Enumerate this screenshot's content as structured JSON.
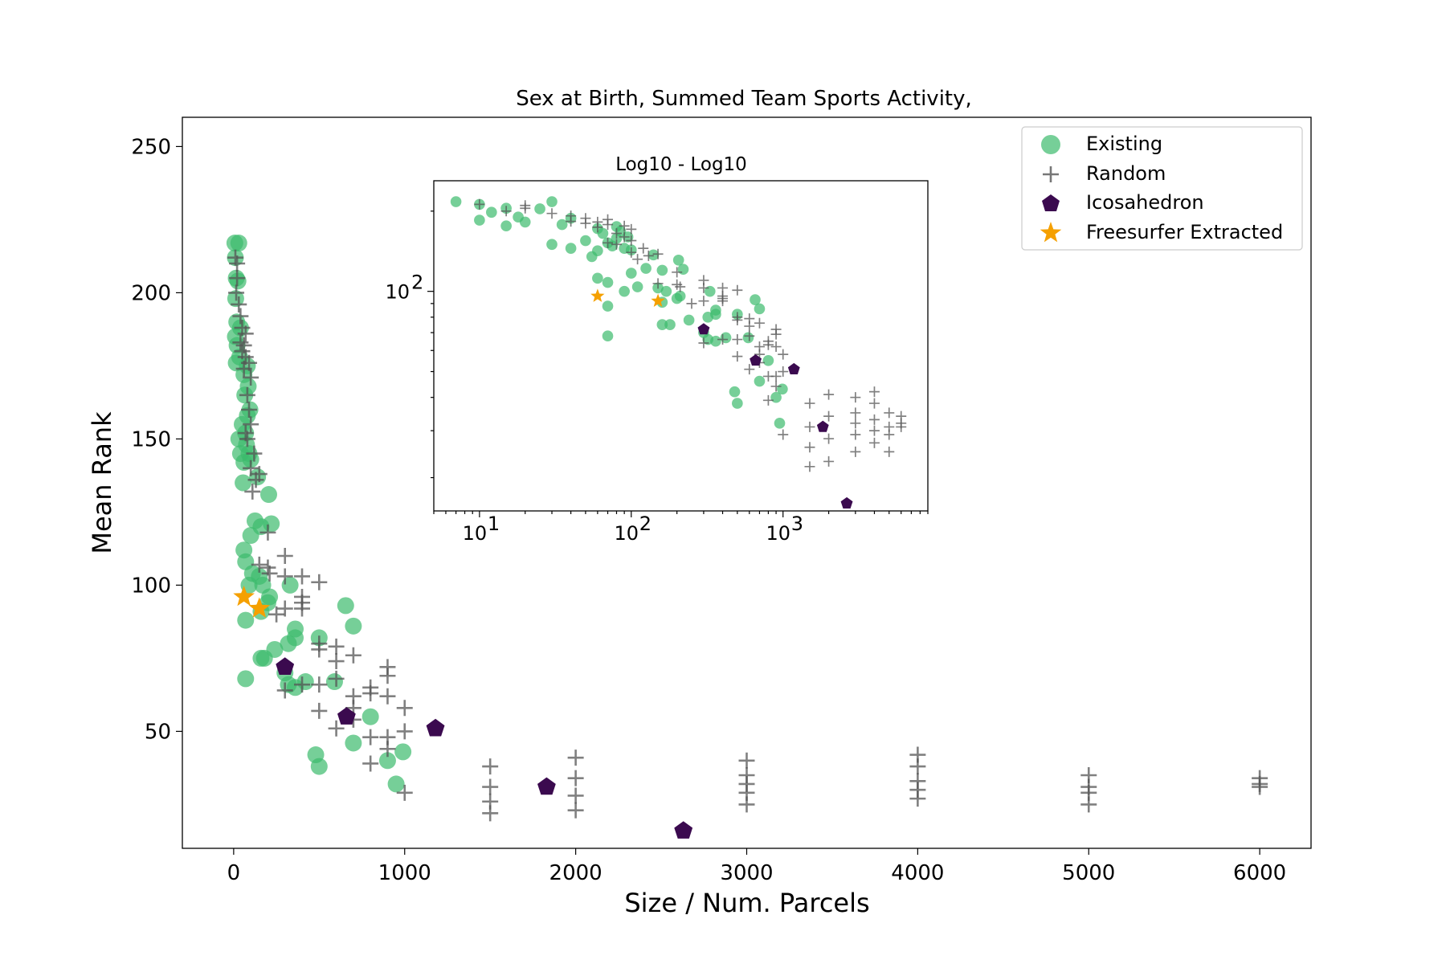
{
  "chart_data": {
    "type": "scatter",
    "title": "Sex at Birth, Summed Team Sports Activity,",
    "xlabel": "Size / Num. Parcels",
    "ylabel": "Mean Rank",
    "xlim": [
      -300,
      6300
    ],
    "ylim": [
      10,
      260
    ],
    "xticks": [
      0,
      1000,
      2000,
      3000,
      4000,
      5000,
      6000
    ],
    "yticks": [
      50,
      100,
      150,
      200,
      250
    ],
    "grid": false,
    "legend_position": "upper right",
    "colors": {
      "existing": "#3cbb6c",
      "random": "#555555",
      "icosahedron": "#3b0a4f",
      "freesurfer": "#f5a000"
    },
    "series": [
      {
        "name": "Existing",
        "marker": "circle",
        "points": [
          [
            7,
            217
          ],
          [
            30,
            217
          ],
          [
            10,
            212
          ],
          [
            15,
            205
          ],
          [
            25,
            204
          ],
          [
            12,
            198
          ],
          [
            18,
            190
          ],
          [
            40,
            188
          ],
          [
            10,
            185
          ],
          [
            20,
            182
          ],
          [
            35,
            178
          ],
          [
            80,
            175
          ],
          [
            15,
            176
          ],
          [
            60,
            172
          ],
          [
            85,
            168
          ],
          [
            65,
            165
          ],
          [
            95,
            160
          ],
          [
            80,
            158
          ],
          [
            50,
            155
          ],
          [
            70,
            152
          ],
          [
            30,
            150
          ],
          [
            75,
            148
          ],
          [
            40,
            145
          ],
          [
            90,
            145
          ],
          [
            60,
            142
          ],
          [
            100,
            143
          ],
          [
            55,
            135
          ],
          [
            140,
            137
          ],
          [
            205,
            131
          ],
          [
            125,
            122
          ],
          [
            160,
            120
          ],
          [
            220,
            121
          ],
          [
            100,
            117
          ],
          [
            60,
            112
          ],
          [
            70,
            108
          ],
          [
            110,
            104
          ],
          [
            150,
            103
          ],
          [
            90,
            100
          ],
          [
            170,
            100
          ],
          [
            330,
            100
          ],
          [
            210,
            96
          ],
          [
            200,
            94
          ],
          [
            160,
            91
          ],
          [
            655,
            93
          ],
          [
            70,
            88
          ],
          [
            700,
            86
          ],
          [
            360,
            85
          ],
          [
            360,
            82
          ],
          [
            500,
            82
          ],
          [
            320,
            80
          ],
          [
            240,
            78
          ],
          [
            160,
            75
          ],
          [
            180,
            75
          ],
          [
            300,
            70
          ],
          [
            70,
            68
          ],
          [
            420,
            67
          ],
          [
            320,
            66
          ],
          [
            360,
            65
          ],
          [
            590,
            67
          ],
          [
            800,
            55
          ],
          [
            700,
            46
          ],
          [
            480,
            42
          ],
          [
            500,
            38
          ],
          [
            900,
            40
          ],
          [
            990,
            43
          ],
          [
            950,
            32
          ]
        ]
      },
      {
        "name": "Random",
        "marker": "plus",
        "points": [
          [
            10,
            212
          ],
          [
            20,
            210
          ],
          [
            20,
            205
          ],
          [
            15,
            200
          ],
          [
            30,
            196
          ],
          [
            40,
            192
          ],
          [
            50,
            188
          ],
          [
            70,
            186
          ],
          [
            40,
            183
          ],
          [
            60,
            182
          ],
          [
            50,
            180
          ],
          [
            70,
            178
          ],
          [
            90,
            176
          ],
          [
            60,
            174
          ],
          [
            100,
            171
          ],
          [
            80,
            165
          ],
          [
            90,
            160
          ],
          [
            100,
            155
          ],
          [
            70,
            152
          ],
          [
            80,
            150
          ],
          [
            120,
            145
          ],
          [
            100,
            140
          ],
          [
            150,
            138
          ],
          [
            130,
            136
          ],
          [
            110,
            132
          ],
          [
            200,
            118
          ],
          [
            300,
            110
          ],
          [
            150,
            107
          ],
          [
            200,
            106
          ],
          [
            210,
            104
          ],
          [
            300,
            103
          ],
          [
            400,
            103
          ],
          [
            500,
            101
          ],
          [
            400,
            96
          ],
          [
            400,
            94
          ],
          [
            300,
            92
          ],
          [
            400,
            92
          ],
          [
            250,
            90
          ],
          [
            500,
            80
          ],
          [
            500,
            78
          ],
          [
            600,
            79
          ],
          [
            700,
            76
          ],
          [
            600,
            74
          ],
          [
            600,
            68
          ],
          [
            500,
            66
          ],
          [
            400,
            66
          ],
          [
            300,
            64
          ],
          [
            900,
            72
          ],
          [
            900,
            69
          ],
          [
            800,
            65
          ],
          [
            800,
            63
          ],
          [
            900,
            62
          ],
          [
            700,
            62
          ],
          [
            700,
            58
          ],
          [
            1000,
            58
          ],
          [
            500,
            57
          ],
          [
            700,
            54
          ],
          [
            600,
            51
          ],
          [
            900,
            48
          ],
          [
            1000,
            50
          ],
          [
            800,
            48
          ],
          [
            800,
            39
          ],
          [
            900,
            44
          ],
          [
            1000,
            29
          ],
          [
            1500,
            38
          ],
          [
            1500,
            31
          ],
          [
            1500,
            26
          ],
          [
            1500,
            22
          ],
          [
            2000,
            41
          ],
          [
            2000,
            34
          ],
          [
            2000,
            28
          ],
          [
            2000,
            23
          ],
          [
            3000,
            40
          ],
          [
            3000,
            35
          ],
          [
            3000,
            32
          ],
          [
            3000,
            29
          ],
          [
            3000,
            25
          ],
          [
            4000,
            42
          ],
          [
            4000,
            38
          ],
          [
            4000,
            33
          ],
          [
            4000,
            30
          ],
          [
            4000,
            27
          ],
          [
            5000,
            35
          ],
          [
            5000,
            31
          ],
          [
            5000,
            29
          ],
          [
            5000,
            25
          ],
          [
            6000,
            34
          ],
          [
            6000,
            32
          ],
          [
            6000,
            31
          ]
        ]
      },
      {
        "name": "Icosahedron",
        "marker": "pentagon",
        "points": [
          [
            300,
            72
          ],
          [
            660,
            55
          ],
          [
            1180,
            51
          ],
          [
            1830,
            31
          ],
          [
            2630,
            16
          ]
        ]
      },
      {
        "name": "Freesurfer Extracted",
        "marker": "star",
        "points": [
          [
            60,
            96
          ],
          [
            150,
            92
          ]
        ]
      }
    ],
    "inset": {
      "title": "Log10 - Log10",
      "scale": "log-log",
      "xlim": [
        5,
        9000
      ],
      "ylim": [
        15,
        260
      ],
      "xtick_labels": [
        "10",
        "10",
        "10"
      ],
      "xtick_exponents": [
        "1",
        "2",
        "3"
      ],
      "ytick_labels": [
        "10"
      ],
      "ytick_exponents": [
        "2"
      ]
    }
  }
}
